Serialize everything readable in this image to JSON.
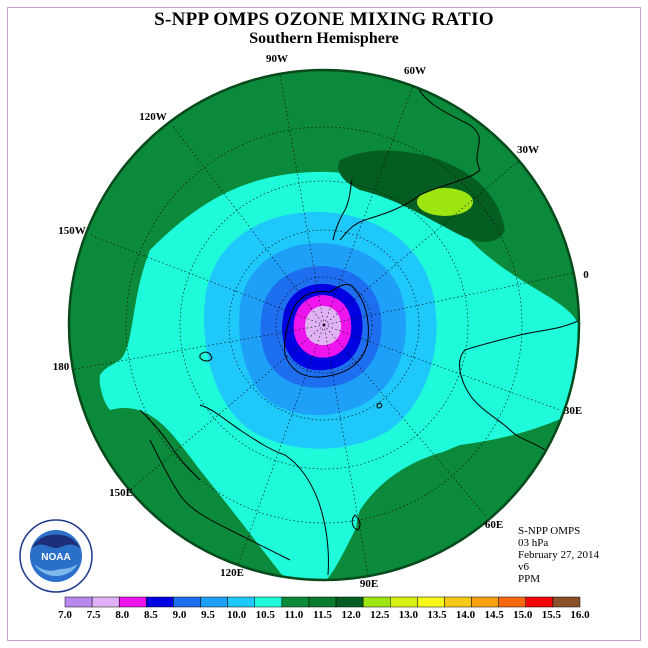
{
  "title": "S-NPP OMPS OZONE MIXING RATIO",
  "subtitle": "Southern Hemisphere",
  "map": {
    "projection": "polar-stereographic-south",
    "longitude_labels": {
      "lon_90W": "90W",
      "lon_60W": "60W",
      "lon_120W": "120W",
      "lon_30W": "30W",
      "lon_150W": "150W",
      "lon_0": "0",
      "lon_180": "180",
      "lon_30E": "30E",
      "lon_150E": "150E",
      "lon_60E": "60E",
      "lon_120E": "120E",
      "lon_90E": "90E"
    }
  },
  "info": {
    "instrument": "S-NPP OMPS",
    "level": "03 hPa",
    "date": "February 27, 2014",
    "version": "v6",
    "units": "PPM"
  },
  "colorbar": {
    "labels": [
      "7.0",
      "7.5",
      "8.0",
      "8.5",
      "9.0",
      "9.5",
      "10.0",
      "10.5",
      "11.0",
      "11.5",
      "12.0",
      "12.5",
      "13.0",
      "13.5",
      "14.0",
      "14.5",
      "15.0",
      "15.5",
      "16.0"
    ],
    "colors": [
      "#b887f0",
      "#e0b2f5",
      "#ee14ee",
      "#0000e0",
      "#1e6ef0",
      "#1ea0f8",
      "#1ec8fa",
      "#1efada",
      "#0a8a3a",
      "#0a7a2c",
      "#045e22",
      "#9ee612",
      "#d6f214",
      "#f8f818",
      "#f8c818",
      "#f8a010",
      "#f86810",
      "#f00808",
      "#8a5028"
    ]
  },
  "logo": {
    "text": "NOAA",
    "icon": "noaa-logo-icon"
  }
}
